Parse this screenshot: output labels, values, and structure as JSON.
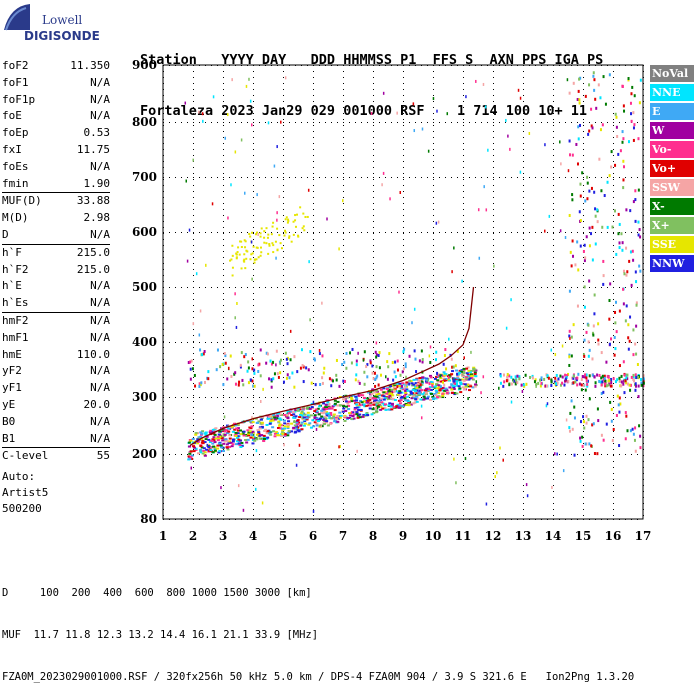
{
  "logo": {
    "line1": "Lowell",
    "line2": "DIGISONDE"
  },
  "header": {
    "row1": "Station   YYYY DAY   DDD HHMMSS P1  FFS S  AXN PPS IGA PS",
    "row2": "Fortaleza 2023 Jan29 029 001000 RSF    1 714 100 10+ 11"
  },
  "params": {
    "group1": [
      {
        "name": "foF2",
        "value": "11.350"
      },
      {
        "name": "foF1",
        "value": "N/A"
      },
      {
        "name": "foF1p",
        "value": "N/A"
      },
      {
        "name": "foE",
        "value": "N/A"
      },
      {
        "name": "foEp",
        "value": "0.53"
      },
      {
        "name": "fxI",
        "value": "11.75"
      },
      {
        "name": "foEs",
        "value": "N/A"
      },
      {
        "name": "fmin",
        "value": "1.90"
      }
    ],
    "group2": [
      {
        "name": "MUF(D)",
        "value": "33.88"
      },
      {
        "name": "M(D)",
        "value": "2.98"
      },
      {
        "name": "D",
        "value": "N/A"
      }
    ],
    "group3": [
      {
        "name": "h`F",
        "value": "215.0"
      },
      {
        "name": "h`F2",
        "value": "215.0"
      },
      {
        "name": "h`E",
        "value": "N/A"
      },
      {
        "name": "h`Es",
        "value": "N/A"
      }
    ],
    "group4": [
      {
        "name": "hmF2",
        "value": "N/A"
      },
      {
        "name": "hmF1",
        "value": "N/A"
      },
      {
        "name": "hmE",
        "value": "110.0"
      },
      {
        "name": "yF2",
        "value": "N/A"
      },
      {
        "name": "yF1",
        "value": "N/A"
      },
      {
        "name": "yE",
        "value": "20.0"
      },
      {
        "name": "B0",
        "value": "N/A"
      },
      {
        "name": "B1",
        "value": "N/A"
      }
    ],
    "group5": [
      {
        "name": "C-level",
        "value": "55"
      }
    ],
    "auto": [
      "Auto:",
      "Artist5",
      "500200"
    ]
  },
  "legend": [
    {
      "label": "NoVal",
      "color": "#808080"
    },
    {
      "label": "NNE",
      "color": "#00e5ff"
    },
    {
      "label": "E",
      "color": "#3fa9f5"
    },
    {
      "label": "W",
      "color": "#a000a0"
    },
    {
      "label": "Vo-",
      "color": "#ff2f8f"
    },
    {
      "label": "Vo+",
      "color": "#e00000"
    },
    {
      "label": "SSW",
      "color": "#f5a5a5"
    },
    {
      "label": "X-",
      "color": "#007a00"
    },
    {
      "label": "X+",
      "color": "#80c060"
    },
    {
      "label": "SSE",
      "color": "#e6e600"
    },
    {
      "label": "NNW",
      "color": "#2020e0"
    }
  ],
  "footer": {
    "line1": "D     100  200  400  600  800 1000 1500 3000 [km]",
    "line2": "MUF  11.7 11.8 12.3 13.2 14.4 16.1 21.1 33.9 [MHz]",
    "line3": "FZA0M_2023029001000.RSF / 320fx256h 50 kHz 5.0 km / DPS-4 FZA0M 904 / 3.9 S 321.6 E   Ion2Png 1.3.20"
  },
  "chart_data": {
    "type": "scatter",
    "x_ticks": [
      1,
      2,
      3,
      4,
      5,
      6,
      7,
      8,
      9,
      10,
      11,
      12,
      13,
      14,
      15,
      16,
      17
    ],
    "y_ticks": [
      80,
      200,
      300,
      400,
      500,
      600,
      700,
      800,
      900
    ],
    "xlim": [
      1,
      17
    ],
    "ylim": [
      80,
      900
    ],
    "grid": true,
    "trace": {
      "x": [
        1.9,
        2.3,
        3.0,
        4.0,
        5.0,
        6.0,
        7.0,
        8.0,
        9.0,
        9.6,
        10.2,
        10.6,
        11.0,
        11.2,
        11.35
      ],
      "y": [
        215,
        228,
        245,
        262,
        275,
        287,
        300,
        312,
        330,
        345,
        360,
        375,
        395,
        425,
        500
      ]
    },
    "legend_placement": "right"
  }
}
